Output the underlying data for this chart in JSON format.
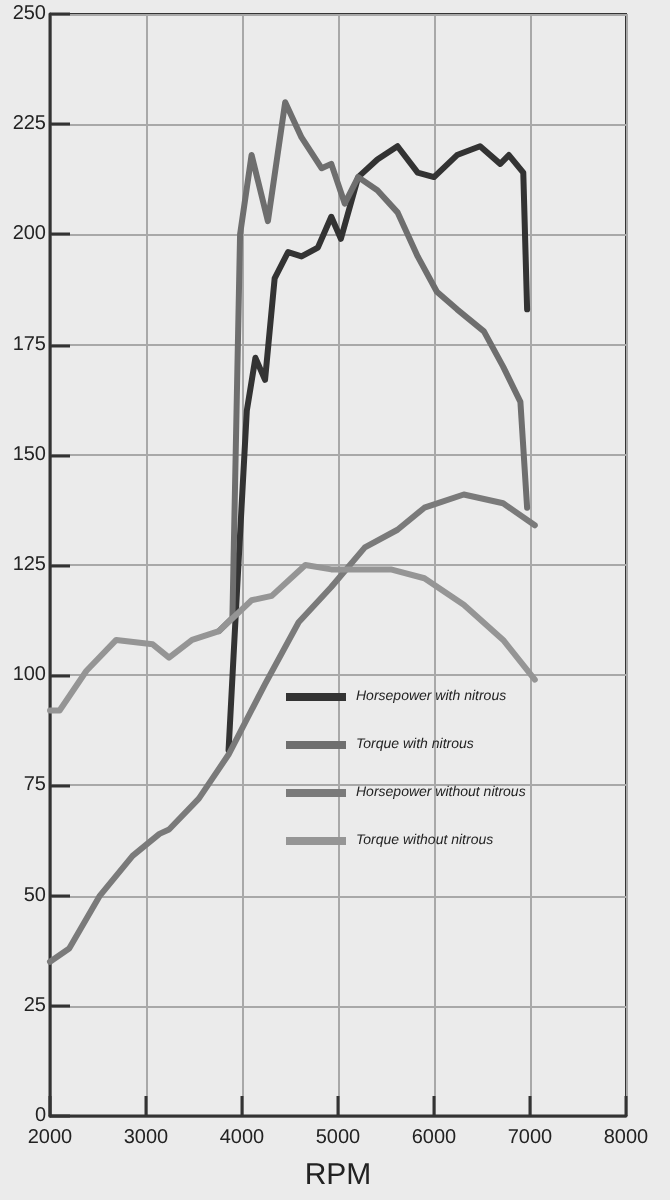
{
  "chart_data": {
    "type": "line",
    "xlabel": "RPM",
    "xlim": [
      2000,
      8000
    ],
    "xticks": [
      2000,
      3000,
      4000,
      5000,
      6000,
      7000,
      8000
    ],
    "ylim": [
      0,
      250
    ],
    "yticks": [
      0,
      25,
      50,
      75,
      100,
      125,
      150,
      175,
      200,
      225,
      250
    ],
    "grid": true,
    "legend": "center",
    "marker": "none",
    "line_style": "solid",
    "series": [
      {
        "name": "Horsepower with nitrous",
        "color": "#333333",
        "x": [
          3860,
          3950,
          4050,
          4140,
          4240,
          4340,
          4480,
          4620,
          4790,
          4930,
          5030,
          5210,
          5410,
          5620,
          5830,
          6000,
          6240,
          6480,
          6690,
          6780,
          6930,
          6970
        ],
        "values": [
          83,
          120,
          160,
          172,
          167,
          190,
          196,
          195,
          197,
          204,
          199,
          213,
          217,
          220,
          214,
          213,
          218,
          220,
          216,
          218,
          214,
          183
        ]
      },
      {
        "name": "Torque with nitrous",
        "color": "#6e6e6e",
        "x": [
          3760,
          3900,
          3980,
          4100,
          4270,
          4450,
          4620,
          4830,
          4930,
          5070,
          5210,
          5410,
          5620,
          5830,
          6030,
          6240,
          6520,
          6720,
          6900,
          6970
        ],
        "values": [
          110,
          113,
          200,
          218,
          203,
          230,
          222,
          215,
          216,
          207,
          213,
          210,
          205,
          195,
          187,
          183,
          178,
          170,
          162,
          138
        ]
      },
      {
        "name": "Horsepower without nitrous",
        "color": "#7a7a7a",
        "x": [
          2000,
          2200,
          2520,
          2860,
          3140,
          3240,
          3550,
          3860,
          4240,
          4590,
          4930,
          5280,
          5620,
          5900,
          6310,
          6720,
          7050
        ],
        "values": [
          35,
          38,
          50,
          59,
          64,
          65,
          72,
          82,
          98,
          112,
          120,
          129,
          133,
          138,
          141,
          139,
          134
        ]
      },
      {
        "name": "Torque without nitrous",
        "color": "#959595",
        "x": [
          2000,
          2100,
          2380,
          2690,
          3070,
          3240,
          3480,
          3760,
          4100,
          4310,
          4660,
          4930,
          5340,
          5550,
          5900,
          6310,
          6720,
          7050
        ],
        "values": [
          92,
          92,
          101,
          108,
          107,
          104,
          108,
          110,
          117,
          118,
          125,
          124,
          124,
          124,
          122,
          116,
          108,
          99
        ]
      }
    ]
  }
}
